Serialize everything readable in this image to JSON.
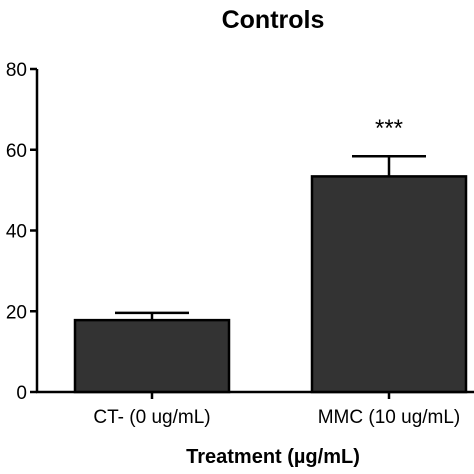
{
  "chart_data": {
    "type": "bar",
    "title": "Controls",
    "xlabel": "Treatment (µg/mL)",
    "ylabel": "",
    "ylim": [
      0,
      80
    ],
    "yticks": [
      0,
      20,
      40,
      60,
      80
    ],
    "ytick_labels": [
      "0",
      "20",
      "40",
      "60",
      "80"
    ],
    "categories": [
      "CT- (0 ug/mL)",
      "MMC (10 ug/mL)"
    ],
    "values": [
      17.8,
      53.4
    ],
    "errors": [
      1.8,
      5.0
    ],
    "annotations": [
      "",
      "***"
    ],
    "bar_color": "#333333",
    "grid": false,
    "legend": "none"
  }
}
